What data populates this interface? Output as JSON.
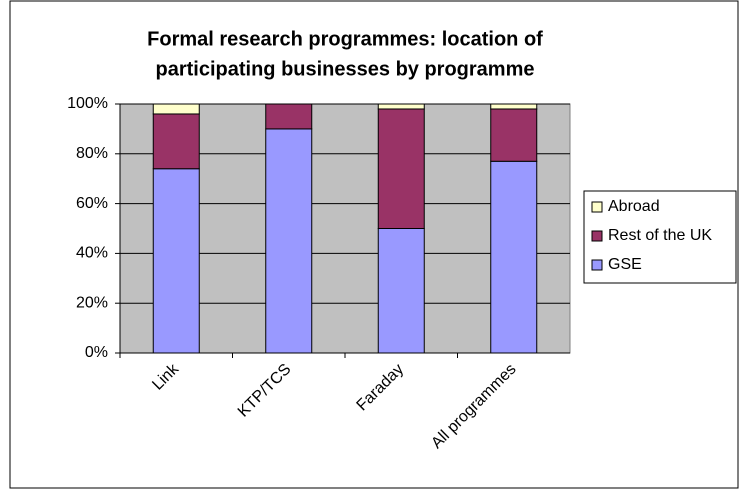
{
  "chart_data": {
    "type": "stacked_bar",
    "title": [
      "Formal research programmes: location of",
      "participating businesses by programme"
    ],
    "categories": [
      "Link",
      "KTP/TCS",
      "Faraday",
      "All programmes"
    ],
    "series": [
      {
        "name": "GSE",
        "color": "#9999ff",
        "values": [
          74,
          90,
          50,
          77
        ]
      },
      {
        "name": "Rest of the UK",
        "color": "#993366",
        "values": [
          22,
          10,
          48,
          21
        ]
      },
      {
        "name": "Abroad",
        "color": "#ffffcc",
        "values": [
          4,
          0,
          2,
          2
        ]
      }
    ],
    "ylim": [
      0,
      100
    ],
    "yticks": [
      {
        "value": 0,
        "label": "0%"
      },
      {
        "value": 20,
        "label": "20%"
      },
      {
        "value": 40,
        "label": "40%"
      },
      {
        "value": 60,
        "label": "60%"
      },
      {
        "value": 80,
        "label": "80%"
      },
      {
        "value": 100,
        "label": "100%"
      }
    ],
    "grid": true,
    "legend": "right"
  }
}
